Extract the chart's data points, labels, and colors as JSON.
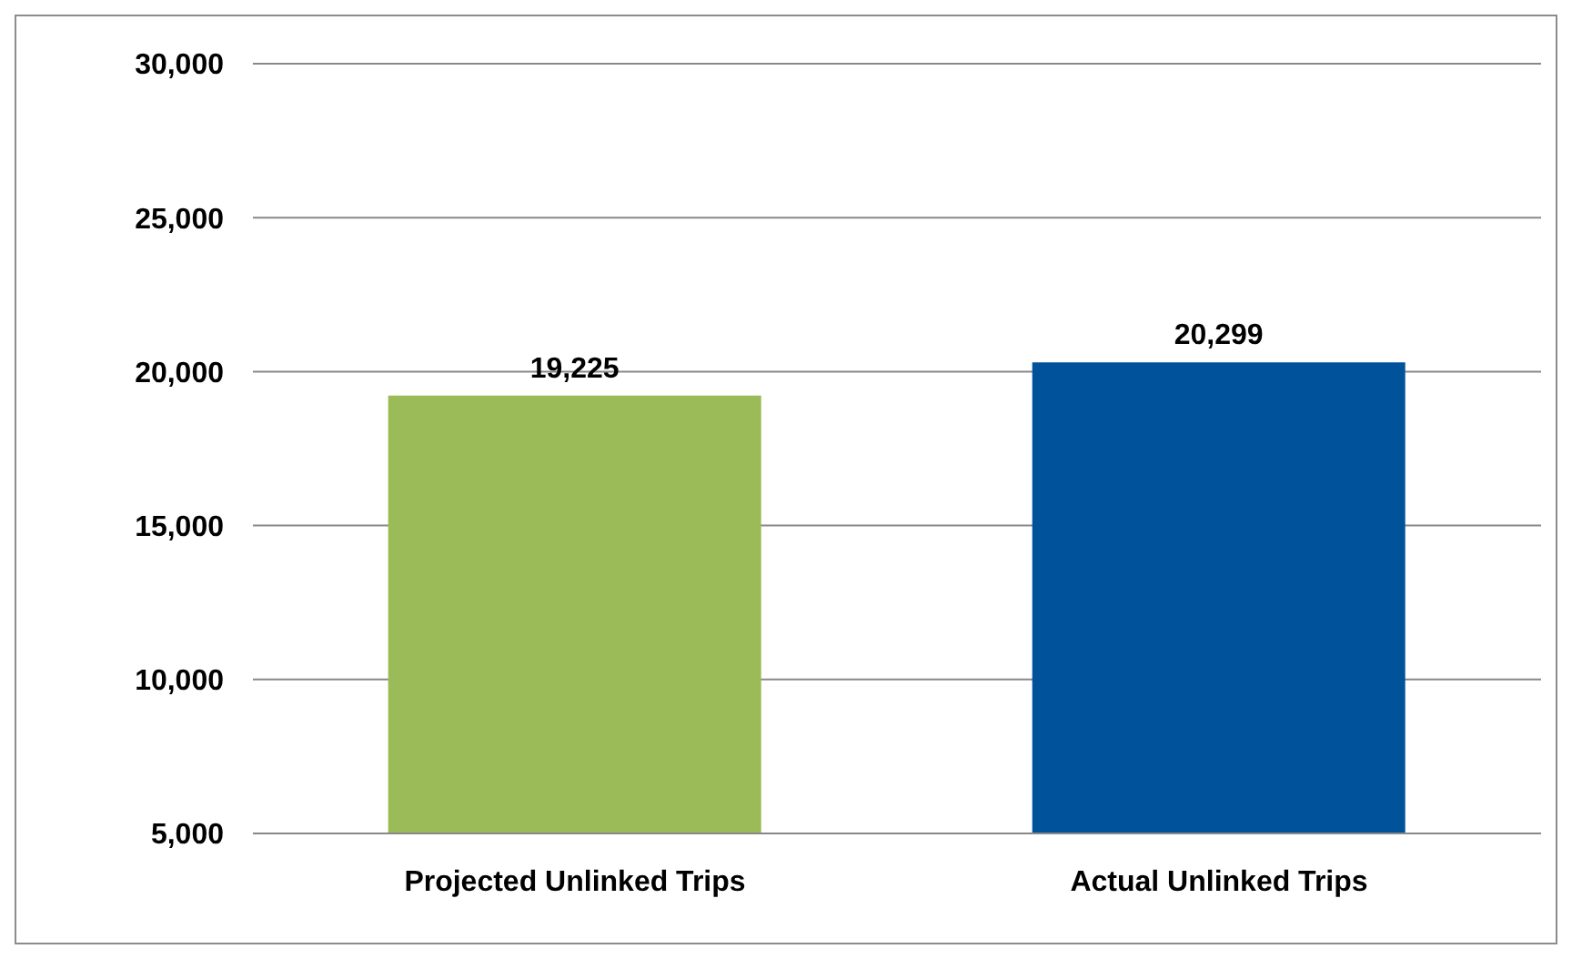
{
  "chart_data": {
    "type": "bar",
    "categories": [
      "Projected Unlinked Trips",
      "Actual Unlinked Trips"
    ],
    "values": [
      19225,
      20299
    ],
    "colors": [
      "#9bbb59",
      "#00539b"
    ],
    "value_labels": [
      "19,225",
      "20,299"
    ],
    "ylim": [
      5000,
      30000
    ],
    "yticks": [
      {
        "value": 5000,
        "label": "5,000"
      },
      {
        "value": 10000,
        "label": "10,000"
      },
      {
        "value": 15000,
        "label": "15,000"
      },
      {
        "value": 20000,
        "label": "20,000"
      },
      {
        "value": 25000,
        "label": "25,000"
      },
      {
        "value": 30000,
        "label": "30,000"
      }
    ],
    "grid": "y",
    "legend": false
  }
}
